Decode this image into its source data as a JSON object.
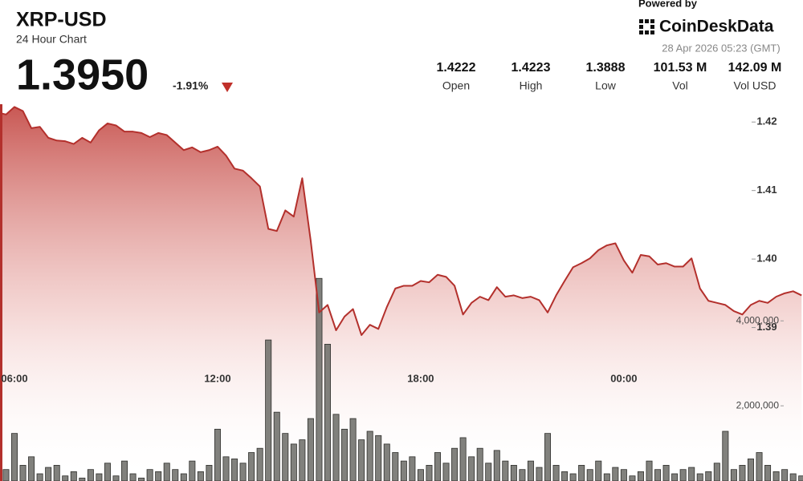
{
  "header": {
    "title": "XRP-USD",
    "subtitle": "24 Hour Chart",
    "price": "1.3950",
    "change": "-1.91%"
  },
  "stats": [
    {
      "value": "1.4222",
      "label": "Open"
    },
    {
      "value": "1.4223",
      "label": "High"
    },
    {
      "value": "1.3888",
      "label": "Low"
    },
    {
      "value": "101.53 M",
      "label": "Vol"
    },
    {
      "value": "142.09 M",
      "label": "Vol USD"
    }
  ],
  "branding": {
    "powered_by": "Powered by",
    "brand": "CoinDeskData",
    "timestamp": "28 Apr 2026 05:23 (GMT)"
  },
  "chart_data": {
    "type": "line",
    "categories": [
      null,
      null,
      "06:00",
      null,
      null,
      null,
      null,
      null,
      null,
      null,
      null,
      null,
      null,
      null,
      null,
      null,
      null,
      null,
      null,
      null,
      null,
      null,
      null,
      null,
      null,
      null,
      "12:00",
      null,
      null,
      null,
      null,
      null,
      null,
      null,
      null,
      null,
      null,
      null,
      null,
      null,
      null,
      null,
      null,
      null,
      null,
      null,
      null,
      null,
      null,
      null,
      "18:00",
      null,
      null,
      null,
      null,
      null,
      null,
      null,
      null,
      null,
      null,
      null,
      null,
      null,
      null,
      null,
      null,
      null,
      null,
      null,
      null,
      null,
      null,
      null,
      "00:00",
      null,
      null,
      null,
      null,
      null,
      null,
      null,
      null,
      null,
      null,
      null,
      null,
      null,
      null,
      null,
      null,
      null,
      null,
      null,
      null,
      null
    ],
    "series": [
      {
        "name": "Price",
        "color": "#b3302c",
        "values": [
          1.4214,
          1.4211,
          1.4222,
          1.4216,
          1.4191,
          1.4193,
          1.4177,
          1.4173,
          1.4172,
          1.4168,
          1.4177,
          1.417,
          1.4188,
          1.4198,
          1.4195,
          1.4186,
          1.4186,
          1.4184,
          1.4178,
          1.4184,
          1.4181,
          1.417,
          1.4159,
          1.4163,
          1.4156,
          1.4159,
          1.4164,
          1.4151,
          1.4132,
          1.4129,
          1.4118,
          1.4106,
          1.4044,
          1.4041,
          1.4071,
          1.4062,
          1.4118,
          1.4027,
          1.3922,
          1.3933,
          1.3896,
          1.3916,
          1.3927,
          1.3889,
          1.3904,
          1.3898,
          1.393,
          1.3957,
          1.3961,
          1.3961,
          1.3968,
          1.3966,
          1.3977,
          1.3974,
          1.3961,
          1.3919,
          1.3936,
          1.3945,
          1.394,
          1.3959,
          1.3945,
          1.3947,
          1.3943,
          1.3945,
          1.394,
          1.3922,
          1.3947,
          1.3968,
          1.3988,
          1.3994,
          1.4001,
          1.4013,
          1.402,
          1.4023,
          1.3998,
          1.398,
          1.4006,
          1.4004,
          1.3992,
          1.3994,
          1.3989,
          1.3989,
          1.4001,
          1.3957,
          1.3939,
          1.3936,
          1.3933,
          1.3924,
          1.3919,
          1.3933,
          1.3939,
          1.3936,
          1.3945,
          1.395,
          1.3953,
          1.3947
        ]
      },
      {
        "name": "Volume",
        "color": "#6b6b66",
        "axis": "y2",
        "values": [
          700000,
          500000,
          1350000,
          600000,
          800000,
          400000,
          550000,
          600000,
          350000,
          450000,
          300000,
          500000,
          400000,
          650000,
          350000,
          700000,
          400000,
          300000,
          500000,
          450000,
          650000,
          500000,
          400000,
          700000,
          450000,
          600000,
          1450000,
          800000,
          750000,
          650000,
          900000,
          1000000,
          3550000,
          1850000,
          1350000,
          1100000,
          1200000,
          1700000,
          5000000,
          3450000,
          1800000,
          1450000,
          1700000,
          1200000,
          1400000,
          1300000,
          1100000,
          900000,
          700000,
          800000,
          500000,
          600000,
          900000,
          650000,
          1000000,
          1250000,
          800000,
          1000000,
          650000,
          950000,
          700000,
          600000,
          500000,
          700000,
          550000,
          1350000,
          600000,
          450000,
          400000,
          600000,
          500000,
          700000,
          400000,
          550000,
          500000,
          350000,
          450000,
          700000,
          500000,
          600000,
          400000,
          500000,
          550000,
          400000,
          450000,
          650000,
          1400000,
          500000,
          600000,
          750000,
          900000,
          600000,
          450000,
          500000,
          400000,
          350000
        ]
      }
    ],
    "ylim": [
      1.3676,
      1.4226
    ],
    "yticks": [
      1.39,
      {
        "value": 1.4,
        "label": "1.40"
      },
      1.41,
      1.42
    ],
    "y2lim": [
      230000,
      9100000
    ],
    "y2ticks": [
      {
        "value": 2000000,
        "label": "2,000,000"
      },
      {
        "value": 4000000,
        "label": "4,000,000"
      }
    ]
  }
}
